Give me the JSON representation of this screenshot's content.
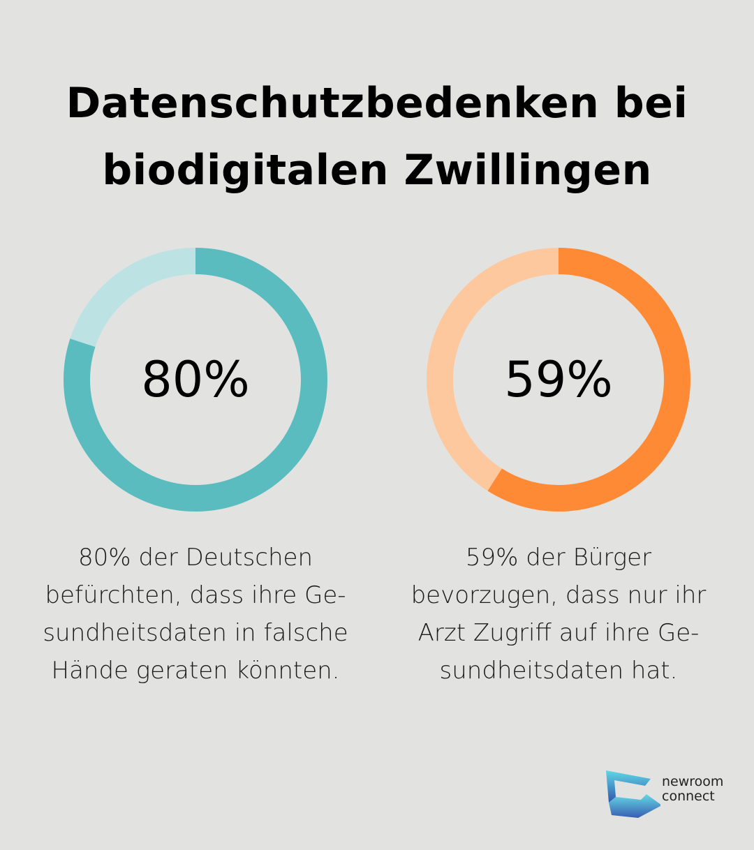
{
  "title": {
    "line1": "Datenschutzbedenken bei",
    "line2": "biodigitalen Zwillingen"
  },
  "chart_data": [
    {
      "type": "pie",
      "variant": "donut",
      "value": 80,
      "max": 100,
      "label": "80%",
      "color_fill": "#5bbcbf",
      "color_track": "#bce2e4",
      "caption_lines": [
        "80% der Deutschen",
        "befürchten, dass ihre Ge-",
        "sundheitsdaten in falsche",
        "Hände geraten könnten."
      ]
    },
    {
      "type": "pie",
      "variant": "donut",
      "value": 59,
      "max": 100,
      "label": "59%",
      "color_fill": "#fe8a36",
      "color_track": "#fec89f",
      "caption_lines": [
        "59% der Bürger",
        "bevorzugen, dass nur ihr",
        "Arzt Zugriff auf ihre Ge-",
        "sundheitsdaten hat."
      ]
    }
  ],
  "logo": {
    "line1": "newroom",
    "line2": "connect",
    "color_top": "#5fd8e4",
    "color_bottom": "#2f55b0"
  },
  "colors": {
    "background": "#e2e3e1"
  }
}
